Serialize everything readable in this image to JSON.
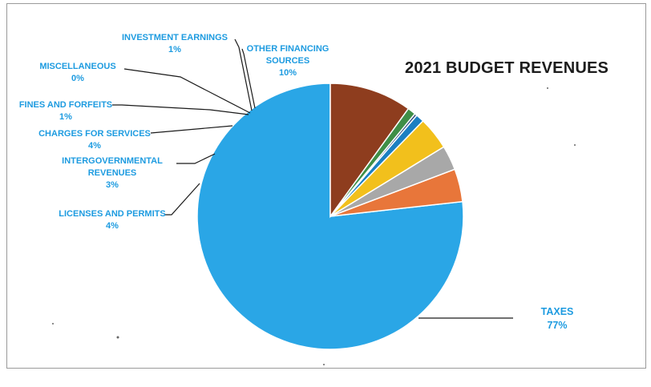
{
  "chart_data": {
    "type": "pie",
    "title": "2021 BUDGET REVENUES",
    "slices": [
      {
        "label": [
          "TAXES"
        ],
        "percent_label": "77%",
        "value": 77,
        "color": "#2aa6e6"
      },
      {
        "label": [
          "LICENSES AND PERMITS"
        ],
        "percent_label": "4%",
        "value": 4,
        "color": "#e8763a"
      },
      {
        "label": [
          "INTERGOVERNMENTAL",
          "REVENUES"
        ],
        "percent_label": "3%",
        "value": 3,
        "color": "#a8a8a8"
      },
      {
        "label": [
          "CHARGES FOR SERVICES"
        ],
        "percent_label": "4%",
        "value": 4,
        "color": "#f2c01c"
      },
      {
        "label": [
          "FINES AND FORFEITS"
        ],
        "percent_label": "1%",
        "value": 1,
        "color": "#1b7fc2"
      },
      {
        "label": [
          "MISCELLANEOUS"
        ],
        "percent_label": "0%",
        "value": 0.3,
        "color": "#2e4a7a"
      },
      {
        "label": [
          "INVESTMENT EARNINGS"
        ],
        "percent_label": "1%",
        "value": 1,
        "color": "#3f8f47"
      },
      {
        "label": [
          "OTHER FINANCING",
          "SOURCES"
        ],
        "percent_label": "10%",
        "value": 10,
        "color": "#8e3d1e"
      }
    ]
  }
}
